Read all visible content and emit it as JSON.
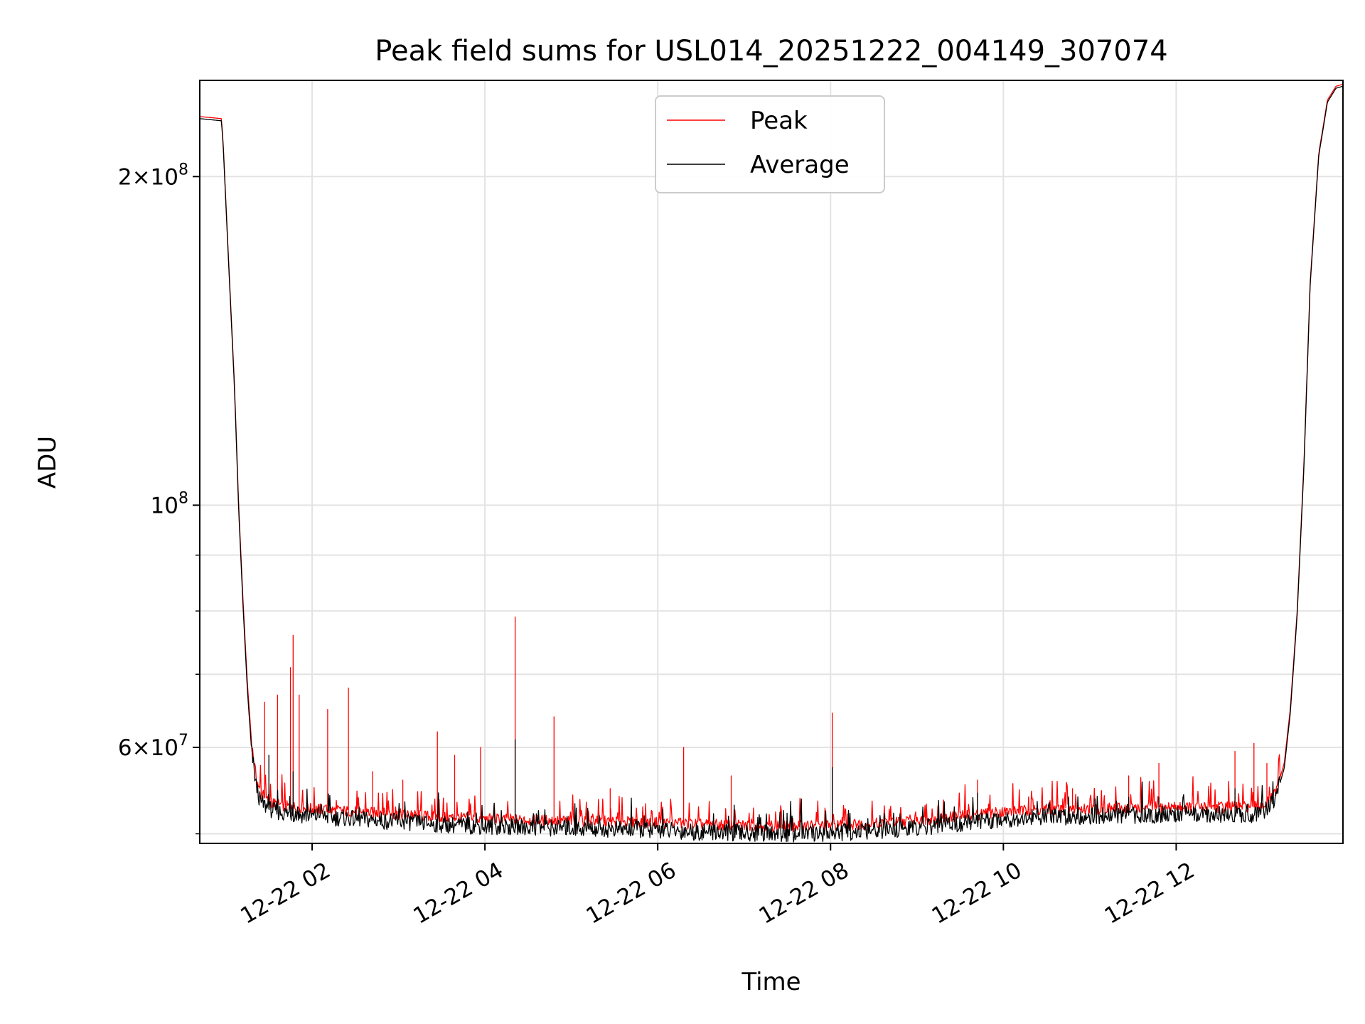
{
  "chart_data": {
    "type": "line",
    "title": "Peak field sums for USL014_20251222_004149_307074",
    "xlabel": "Time",
    "ylabel": "ADU",
    "yscale": "log",
    "ylim": [
      49000000,
      245000000
    ],
    "xlim_hours": [
      0.7,
      13.93
    ],
    "x_unit": "hours after 2025-12-22 00:00",
    "grid": true,
    "legend_position": "upper center",
    "x_ticks": [
      {
        "value": 2,
        "label": "12-22 02"
      },
      {
        "value": 4,
        "label": "12-22 04"
      },
      {
        "value": 6,
        "label": "12-22 06"
      },
      {
        "value": 8,
        "label": "12-22 08"
      },
      {
        "value": 10,
        "label": "12-22 10"
      },
      {
        "value": 12,
        "label": "12-22 12"
      }
    ],
    "y_ticks": [
      {
        "value": 200000000,
        "mant": "2",
        "exp": "8"
      },
      {
        "value": 100000000,
        "mant": "",
        "exp": "8"
      },
      {
        "value": 60000000,
        "mant": "6",
        "exp": "7"
      }
    ],
    "y_minor_ticks": [
      50000000,
      70000000,
      80000000,
      90000000
    ],
    "series": [
      {
        "name": "Peak",
        "color": "#ff0000",
        "x": [
          0.7,
          0.95,
          0.97,
          1.03,
          1.1,
          1.15,
          1.2,
          1.25,
          1.3,
          1.35,
          1.4,
          1.5,
          1.6,
          1.7,
          1.8,
          2.0,
          2.5,
          3.0,
          3.5,
          4.0,
          4.5,
          5.0,
          5.5,
          6.0,
          6.5,
          7.0,
          7.5,
          8.0,
          8.5,
          9.0,
          9.5,
          10.0,
          10.5,
          11.0,
          11.5,
          12.0,
          12.5,
          12.9,
          13.05,
          13.15,
          13.25,
          13.32,
          13.4,
          13.48,
          13.55,
          13.65,
          13.75,
          13.85,
          13.93
        ],
        "values": [
          227000000,
          226000000,
          215000000,
          170000000,
          130000000,
          100000000,
          82000000,
          69000000,
          60500000,
          56500000,
          54500000,
          53500000,
          53200000,
          53000000,
          52900000,
          52700000,
          52400000,
          52100000,
          51800000,
          51600000,
          51500000,
          51400000,
          51300000,
          51200000,
          51000000,
          50900000,
          50800000,
          50900000,
          51100000,
          51400000,
          51900000,
          52400000,
          52600000,
          52700000,
          52800000,
          52900000,
          52900000,
          52900000,
          53300000,
          54500000,
          58000000,
          65000000,
          80000000,
          110000000,
          160000000,
          210000000,
          235000000,
          242000000,
          243000000
        ],
        "spikes": [
          [
            1.45,
            66000000
          ],
          [
            1.6,
            67000000
          ],
          [
            1.75,
            71000000
          ],
          [
            1.78,
            76000000
          ],
          [
            1.85,
            67000000
          ],
          [
            2.18,
            65000000
          ],
          [
            2.42,
            68000000
          ],
          [
            2.7,
            57000000
          ],
          [
            3.05,
            56000000
          ],
          [
            3.45,
            62000000
          ],
          [
            3.65,
            59000000
          ],
          [
            3.95,
            60000000
          ],
          [
            4.35,
            79000000
          ],
          [
            4.8,
            64000000
          ],
          [
            5.45,
            55000000
          ],
          [
            6.3,
            60000000
          ],
          [
            6.85,
            56500000
          ],
          [
            8.02,
            64500000
          ],
          [
            9.7,
            56000000
          ],
          [
            10.8,
            55000000
          ],
          [
            11.45,
            56500000
          ],
          [
            11.8,
            58000000
          ],
          [
            12.68,
            59500000
          ],
          [
            12.9,
            60500000
          ],
          [
            13.05,
            58000000
          ]
        ]
      },
      {
        "name": "Average",
        "color": "#000000",
        "x": [
          0.7,
          0.95,
          0.97,
          1.03,
          1.1,
          1.15,
          1.2,
          1.25,
          1.3,
          1.35,
          1.4,
          1.5,
          1.6,
          1.7,
          1.8,
          2.0,
          2.5,
          3.0,
          3.5,
          4.0,
          4.5,
          5.0,
          5.5,
          6.0,
          6.5,
          7.0,
          7.5,
          8.0,
          8.5,
          9.0,
          9.5,
          10.0,
          10.5,
          11.0,
          11.5,
          12.0,
          12.5,
          12.9,
          13.05,
          13.15,
          13.25,
          13.32,
          13.4,
          13.48,
          13.55,
          13.65,
          13.75,
          13.85,
          13.93
        ],
        "values": [
          226000000,
          225000000,
          214000000,
          169000000,
          129000000,
          99000000,
          81000000,
          68000000,
          59500000,
          55500000,
          53500000,
          52700000,
          52400000,
          52200000,
          52100000,
          51900000,
          51600000,
          51300000,
          51000000,
          50800000,
          50700000,
          50600000,
          50500000,
          50400000,
          50200000,
          50100000,
          50000000,
          50100000,
          50300000,
          50600000,
          51100000,
          51600000,
          51800000,
          51900000,
          52000000,
          52100000,
          52100000,
          52100000,
          52600000,
          53900000,
          57400000,
          64400000,
          79400000,
          109000000,
          159000000,
          209000000,
          234000000,
          241000000,
          242000000
        ],
        "spikes": [
          [
            1.5,
            59000000
          ],
          [
            1.78,
            57000000
          ],
          [
            4.35,
            61000000
          ],
          [
            8.02,
            57500000
          ],
          [
            9.7,
            54500000
          ],
          [
            11.45,
            54000000
          ],
          [
            11.8,
            54000000
          ],
          [
            12.68,
            55000000
          ]
        ]
      }
    ]
  }
}
